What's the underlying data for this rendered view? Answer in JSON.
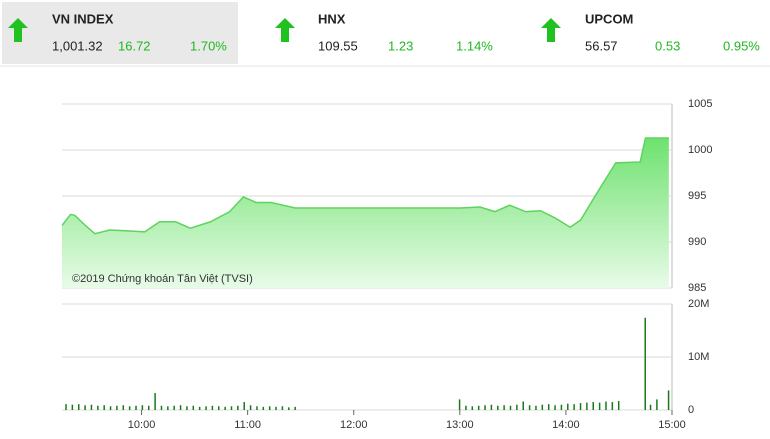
{
  "tickers": [
    {
      "name": "VN INDEX",
      "value": "1,001.32",
      "change": "16.72",
      "percent": "1.70%"
    },
    {
      "name": "HNX",
      "value": "109.55",
      "change": "1.23",
      "percent": "1.14%"
    },
    {
      "name": "UPCOM",
      "value": "56.57",
      "change": "0.53",
      "percent": "0.95%"
    }
  ],
  "chart_data": [
    {
      "type": "area",
      "annotation": "©2019 Chứng khoán Tân Việt (TVSI)",
      "x": [
        9.25,
        9.33,
        9.37,
        9.47,
        9.56,
        9.7,
        9.89,
        10.03,
        10.17,
        10.32,
        10.46,
        10.65,
        10.83,
        10.96,
        11.08,
        11.22,
        11.45,
        13.0,
        13.19,
        13.33,
        13.47,
        13.62,
        13.76,
        13.9,
        14.04,
        14.14,
        14.28,
        14.47,
        14.7,
        14.75,
        14.97
      ],
      "values": [
        991.8,
        993.0,
        992.9,
        991.8,
        990.9,
        991.3,
        991.2,
        991.1,
        992.2,
        992.2,
        991.5,
        992.2,
        993.3,
        994.9,
        994.3,
        994.3,
        993.7,
        993.7,
        993.8,
        993.3,
        994.0,
        993.3,
        993.4,
        992.6,
        991.6,
        992.4,
        995.1,
        998.6,
        998.7,
        1001.3,
        1001.3
      ],
      "color": "#5fd35f",
      "xlim": [
        9.25,
        15
      ],
      "ylim": [
        985,
        1005
      ],
      "yticks": [
        1005,
        1000,
        995,
        990,
        985
      ],
      "grid": true
    },
    {
      "type": "bar",
      "color": "#1a7a1a",
      "x": [
        9.29,
        9.35,
        9.41,
        9.47,
        9.53,
        9.59,
        9.65,
        9.71,
        9.77,
        9.83,
        9.89,
        9.95,
        10.01,
        10.07,
        10.13,
        10.19,
        10.25,
        10.31,
        10.37,
        10.43,
        10.49,
        10.55,
        10.61,
        10.67,
        10.73,
        10.79,
        10.85,
        10.91,
        10.97,
        11.03,
        11.09,
        11.15,
        11.21,
        11.27,
        11.33,
        11.39,
        11.45,
        13.0,
        13.06,
        13.12,
        13.18,
        13.24,
        13.3,
        13.36,
        13.42,
        13.48,
        13.54,
        13.6,
        13.66,
        13.72,
        13.78,
        13.84,
        13.9,
        13.96,
        14.02,
        14.08,
        14.14,
        14.2,
        14.26,
        14.32,
        14.38,
        14.44,
        14.5,
        14.75,
        14.8,
        14.86,
        14.97
      ],
      "values": [
        1.1,
        1.0,
        1.1,
        0.9,
        1.0,
        0.8,
        0.9,
        0.7,
        0.8,
        0.9,
        0.7,
        0.8,
        0.9,
        0.8,
        3.2,
        0.8,
        0.7,
        0.8,
        0.9,
        0.7,
        0.8,
        0.6,
        0.7,
        0.8,
        0.7,
        0.6,
        0.7,
        0.8,
        1.5,
        0.9,
        0.7,
        0.6,
        0.7,
        0.6,
        0.7,
        0.5,
        0.6,
        2.0,
        0.8,
        0.7,
        0.8,
        0.9,
        1.0,
        0.8,
        0.9,
        0.8,
        1.0,
        1.6,
        0.9,
        0.8,
        1.0,
        1.1,
        0.9,
        1.0,
        1.2,
        1.1,
        1.3,
        1.4,
        1.5,
        1.4,
        1.6,
        1.5,
        1.7,
        17.4,
        1.0,
        2.0,
        3.7
      ],
      "xlim": [
        9.25,
        15
      ],
      "ylim": [
        0,
        20
      ],
      "yticks": [
        {
          "value": 20,
          "label": "20M"
        },
        {
          "value": 10,
          "label": "10M"
        },
        0
      ],
      "xticks": [
        {
          "value": 10,
          "label": "10:00"
        },
        {
          "value": 11,
          "label": "11:00"
        },
        {
          "value": 12,
          "label": "12:00"
        },
        {
          "value": 13,
          "label": "13:00"
        },
        {
          "value": 14,
          "label": "14:00"
        },
        {
          "value": 15,
          "label": "15:00"
        }
      ],
      "grid": true
    }
  ]
}
